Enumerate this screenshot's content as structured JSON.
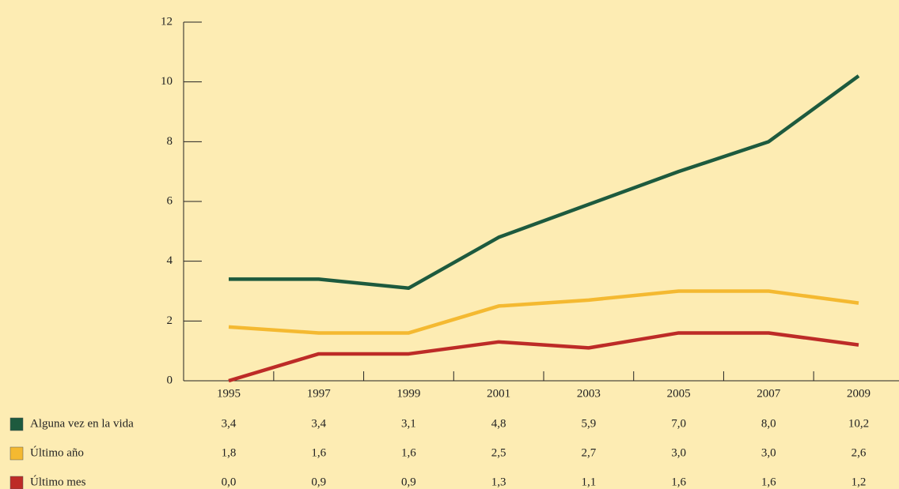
{
  "chart_data": {
    "type": "line",
    "categories": [
      "1995",
      "1997",
      "1999",
      "2001",
      "2003",
      "2005",
      "2007",
      "2009"
    ],
    "series": [
      {
        "name": "Alguna vez en la vida",
        "color": "#1d5a3e",
        "values": [
          3.4,
          3.4,
          3.1,
          4.8,
          5.9,
          7.0,
          8.0,
          10.2
        ],
        "value_labels": [
          "3,4",
          "3,4",
          "3,1",
          "4,8",
          "5,9",
          "7,0",
          "8,0",
          "10,2"
        ]
      },
      {
        "name": "Último año",
        "color": "#f4b931",
        "values": [
          1.8,
          1.6,
          1.6,
          2.5,
          2.7,
          3.0,
          3.0,
          2.6
        ],
        "value_labels": [
          "1,8",
          "1,6",
          "1,6",
          "2,5",
          "2,7",
          "3,0",
          "3,0",
          "2,6"
        ]
      },
      {
        "name": "Último mes",
        "color": "#bd2b27",
        "values": [
          0.0,
          0.9,
          0.9,
          1.3,
          1.1,
          1.6,
          1.6,
          1.2
        ],
        "value_labels": [
          "0,0",
          "0,9",
          "0,9",
          "1,3",
          "1,1",
          "1,6",
          "1,6",
          "1,2"
        ]
      }
    ],
    "ylim": [
      0,
      12
    ],
    "yticks": [
      0,
      2,
      4,
      6,
      8,
      10,
      12
    ]
  }
}
